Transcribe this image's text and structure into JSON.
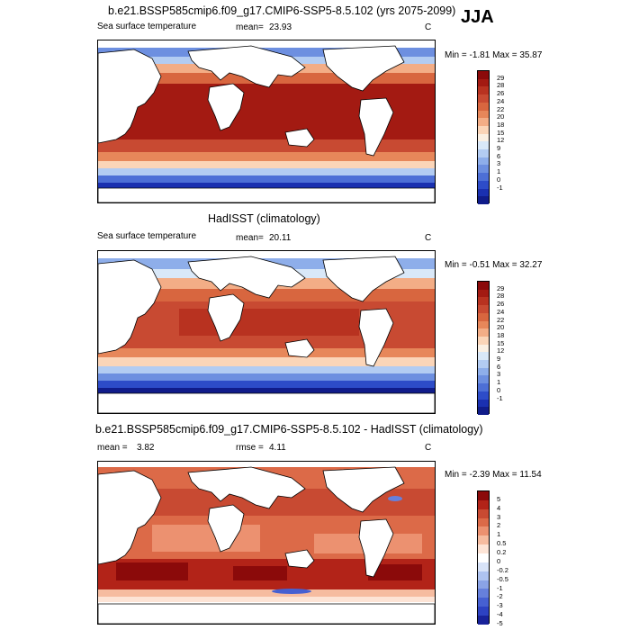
{
  "season": "JJA",
  "panels": [
    {
      "title": "b.e21.BSSP585cmip6.f09_g17.CMIP6-SSP5-8.5.102 (yrs 2075-2099)",
      "left_label": "Sea surface temperature",
      "stat_label": "mean=",
      "stat_value": "23.93",
      "unit": "C",
      "minmax": "Min =  -1.81 Max =  35.87",
      "colorbar_labels": [
        "29",
        "28",
        "26",
        "24",
        "22",
        "20",
        "18",
        "15",
        "12",
        "9",
        "6",
        "3",
        "1",
        "0",
        "-1"
      ]
    },
    {
      "title": "HadISST (climatology)",
      "left_label": "Sea surface temperature",
      "stat_label": "mean=",
      "stat_value": "20.11",
      "unit": "C",
      "minmax": "Min =  -0.51 Max =  32.27",
      "colorbar_labels": [
        "29",
        "28",
        "26",
        "24",
        "22",
        "20",
        "18",
        "15",
        "12",
        "9",
        "6",
        "3",
        "1",
        "0",
        "-1"
      ]
    },
    {
      "title": "b.e21.BSSP585cmip6.f09_g17.CMIP6-SSP5-8.5.102 - HadISST (climatology)",
      "left_label": "mean =",
      "left_value": "3.82",
      "stat_label": "rmse =",
      "stat_value": "4.11",
      "unit": "C",
      "minmax": "Min =  -2.39 Max =  11.54",
      "colorbar_labels": [
        "5",
        "4",
        "3",
        "2",
        "1",
        "0.5",
        "0.2",
        "0",
        "-0.2",
        "-0.5",
        "-1",
        "-2",
        "-3",
        "-4",
        "-5"
      ]
    }
  ],
  "colors": {
    "abs_scale": [
      "#8b0a0a",
      "#a31a12",
      "#b83220",
      "#c84a32",
      "#d8663f",
      "#e7875a",
      "#f3ad86",
      "#fbd5b8",
      "#fbf0e3",
      "#d9e8f8",
      "#b3ccf2",
      "#8eaeea",
      "#6d8fe0",
      "#4d6fd6",
      "#2d4cc8",
      "#1a30b0",
      "#101c8a"
    ],
    "diff_scale": [
      "#8b0a0a",
      "#b22318",
      "#c84a32",
      "#dc6a48",
      "#ec9170",
      "#f6bca0",
      "#fde4d6",
      "#ffffff",
      "#d8e3f8",
      "#aec3f0",
      "#8aa3e6",
      "#6680dc",
      "#4660d2",
      "#2d42c2",
      "#18229a"
    ],
    "land": "#ffffff",
    "coast": "#000000"
  }
}
